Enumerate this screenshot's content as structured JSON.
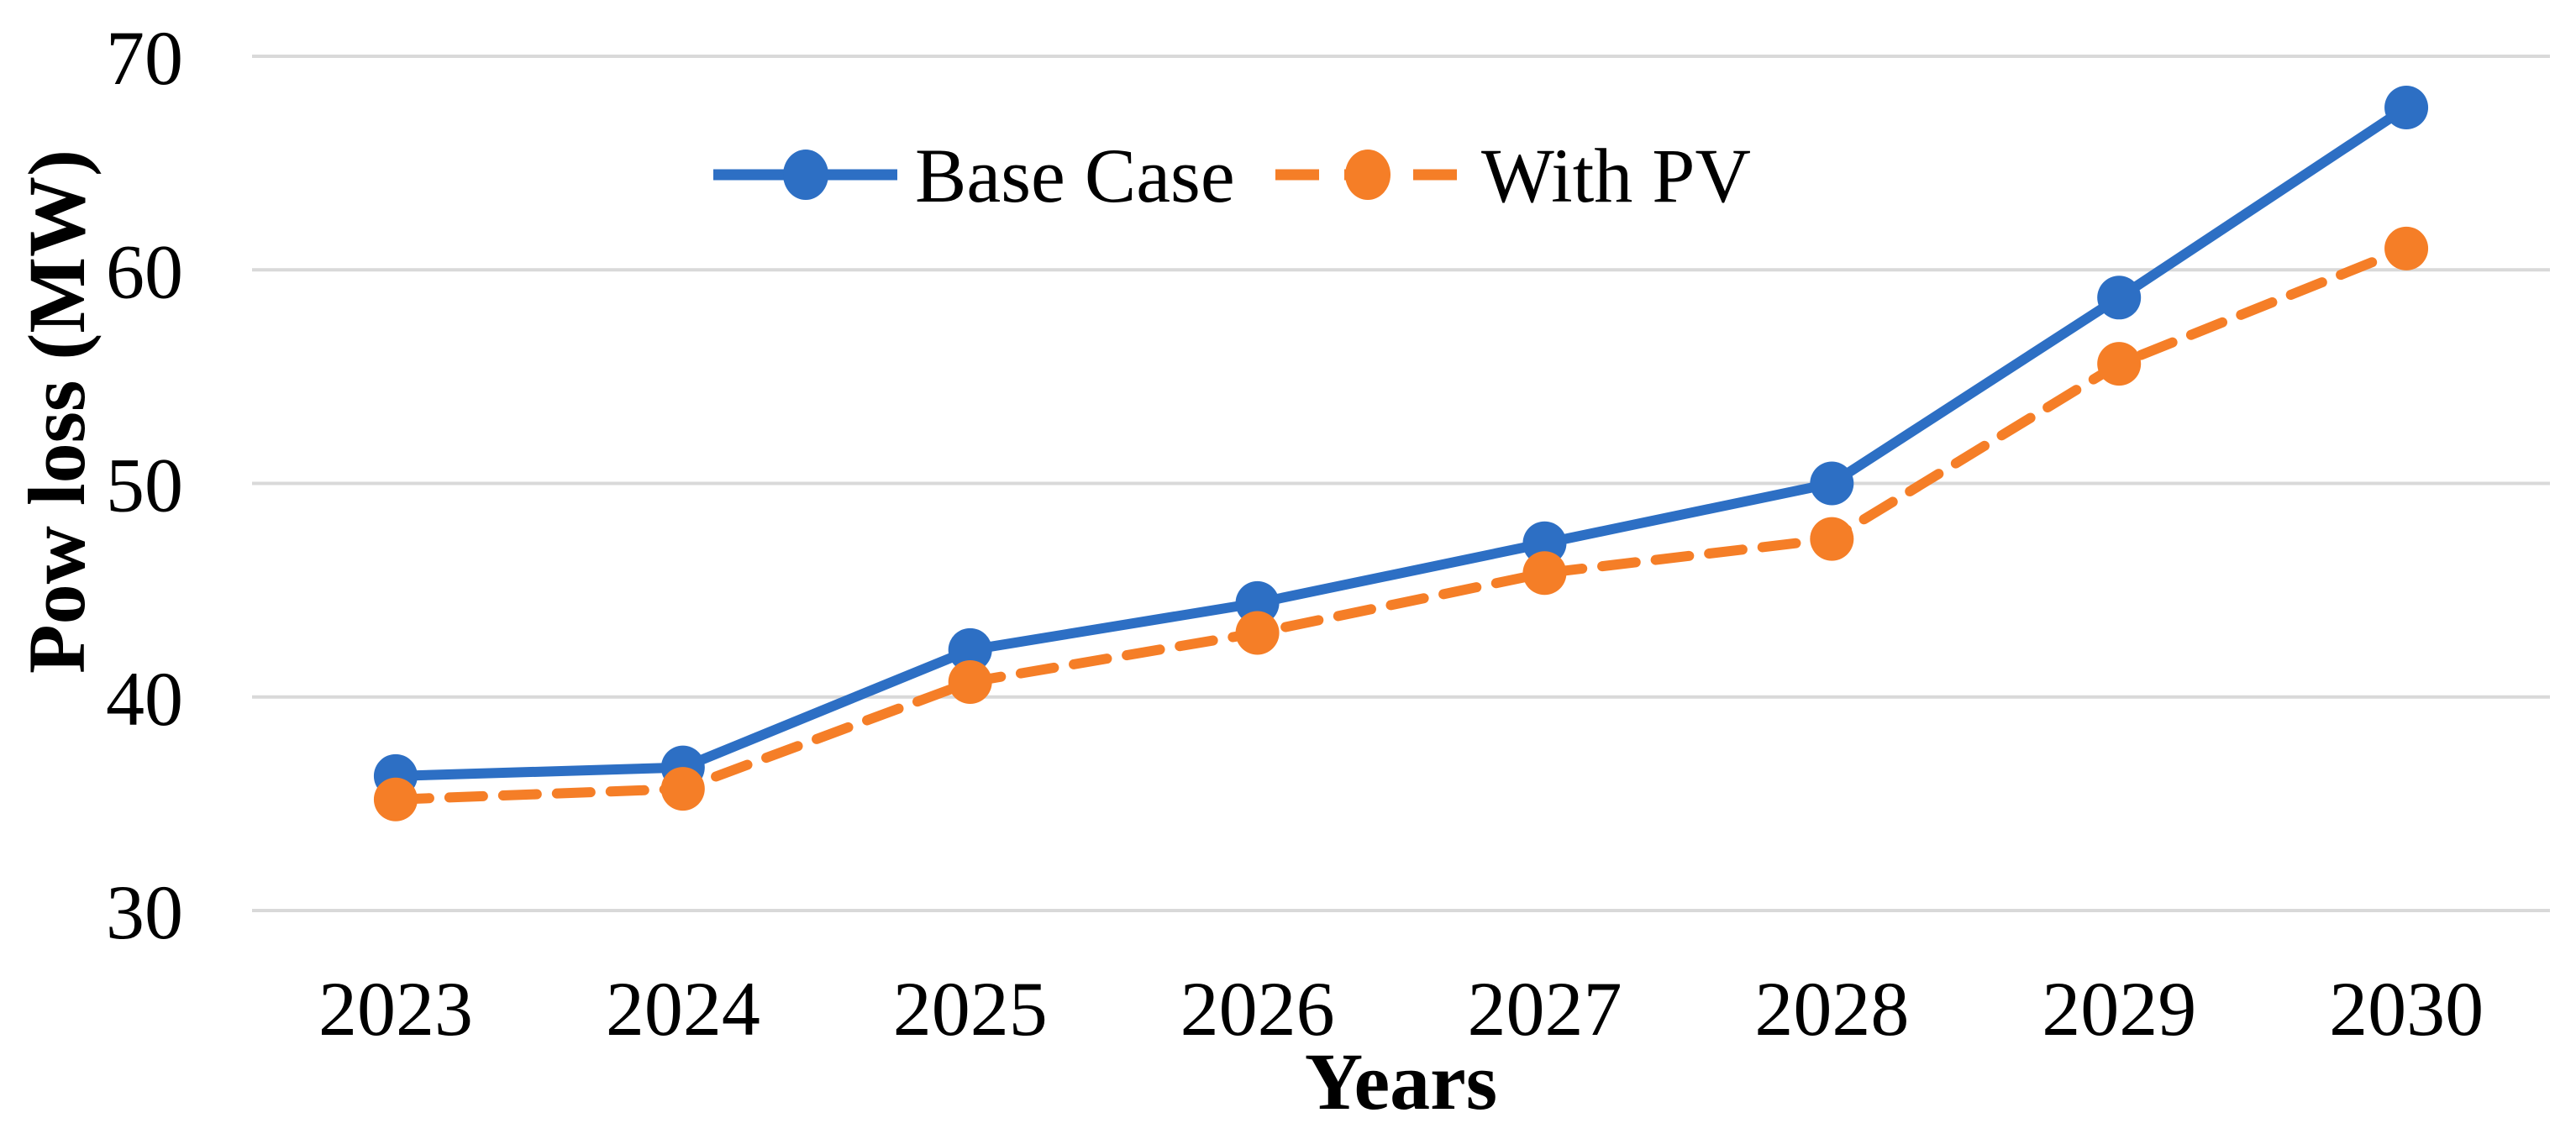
{
  "figure": {
    "background": "#ffffff",
    "text_color": "#000000",
    "gridline_color": "#D9D9D9"
  },
  "chart_data": {
    "type": "line",
    "title": "",
    "x": [
      2023,
      2024,
      2025,
      2026,
      2027,
      2028,
      2029,
      2030
    ],
    "series": [
      {
        "name": "Base Case",
        "color": "#2D6FC4",
        "line_style": "solid",
        "marker": "circle",
        "values": [
          36.3,
          36.7,
          42.2,
          44.4,
          47.2,
          50.0,
          58.7,
          67.6
        ]
      },
      {
        "name": "With PV",
        "color": "#F57E27",
        "line_style": "dashed",
        "marker": "circle",
        "values": [
          35.2,
          35.7,
          40.7,
          43.0,
          45.8,
          47.4,
          55.6,
          61.0
        ]
      }
    ],
    "xlabel": "Years",
    "ylabel": "Pow loss (MW)",
    "ylim": [
      30,
      70
    ],
    "yticks": [
      70,
      60,
      50,
      40,
      30
    ],
    "grid": "horizontal-only",
    "legend_position": "top-center"
  }
}
